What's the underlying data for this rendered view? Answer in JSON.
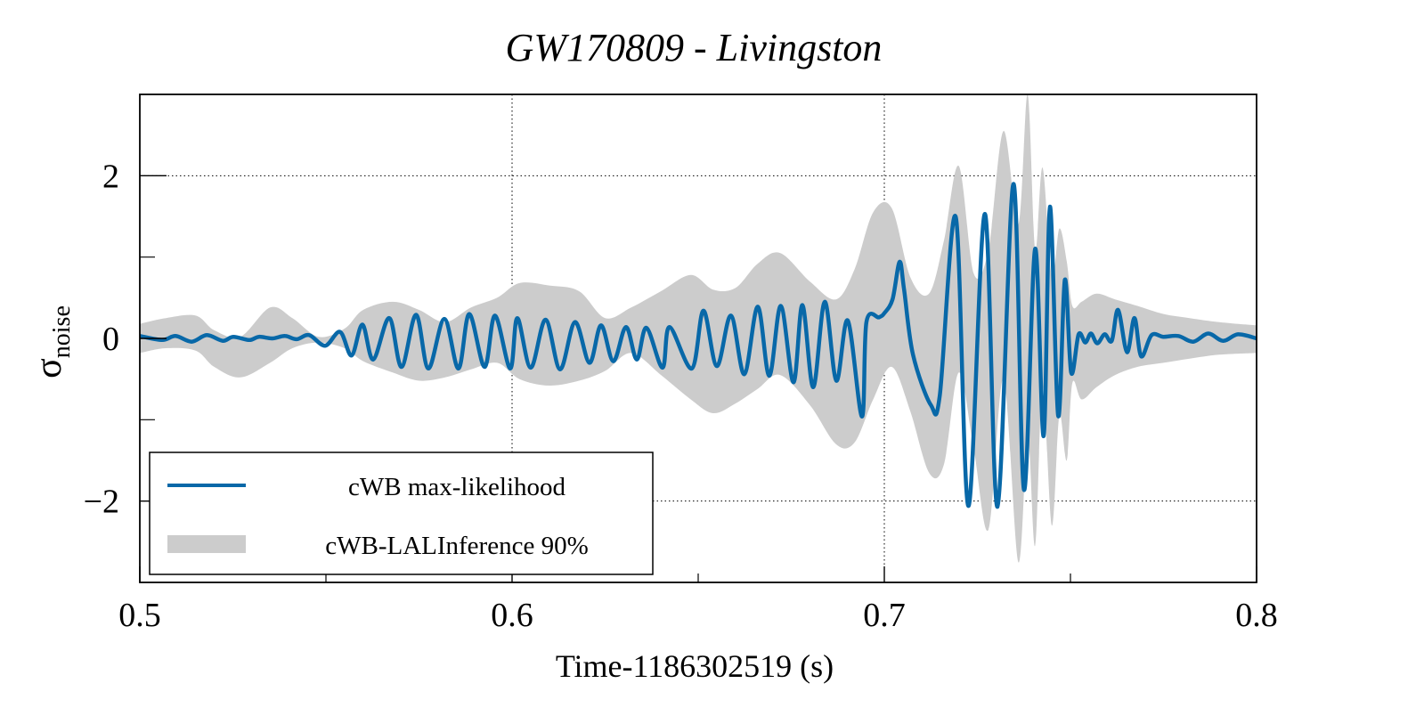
{
  "chart_data": {
    "type": "line",
    "title": "GW170809 - Livingston",
    "xlabel": "Time-1186302519 (s)",
    "ylabel": "σ",
    "ylabel_subscript": "noise",
    "xlim": [
      0.5,
      0.8
    ],
    "ylim": [
      -3.0,
      3.0
    ],
    "xticks": [
      0.5,
      0.6,
      0.7,
      0.8
    ],
    "xtick_labels": [
      "0.5",
      "0.6",
      "0.7",
      "0.8"
    ],
    "xminor_ticks": [
      0.55,
      0.65,
      0.75
    ],
    "yticks": [
      -2,
      0,
      2
    ],
    "ytick_labels": [
      "−2",
      "0",
      "2"
    ],
    "yminor_ticks": [
      -1,
      1
    ],
    "grid": true,
    "legend": {
      "position": "bottom-left",
      "entries": [
        {
          "label": "cWB max-likelihood",
          "kind": "line",
          "color": "#0868a8"
        },
        {
          "label": "cWB-LALInference 90%",
          "kind": "band",
          "color": "#cccccc"
        }
      ]
    },
    "series": [
      {
        "name": "cWB max-likelihood",
        "color": "#0868a8",
        "x": [
          0.5,
          0.506,
          0.5096,
          0.5139,
          0.518,
          0.5223,
          0.5251,
          0.5294,
          0.532,
          0.5356,
          0.539,
          0.5421,
          0.5455,
          0.5498,
          0.5538,
          0.5569,
          0.5598,
          0.5627,
          0.567,
          0.5703,
          0.5742,
          0.5775,
          0.5818,
          0.5856,
          0.5885,
          0.5926,
          0.5954,
          0.5995,
          0.6014,
          0.605,
          0.609,
          0.6129,
          0.6169,
          0.6208,
          0.6239,
          0.6272,
          0.6306,
          0.6335,
          0.6361,
          0.6404,
          0.6423,
          0.6483,
          0.6514,
          0.655,
          0.6588,
          0.6624,
          0.666,
          0.6691,
          0.6722,
          0.6756,
          0.678,
          0.6809,
          0.684,
          0.6871,
          0.6902,
          0.694,
          0.6952,
          0.6986,
          0.7,
          0.7022,
          0.7041,
          0.7053,
          0.7077,
          0.7125,
          0.7149,
          0.7192,
          0.7226,
          0.727,
          0.7304,
          0.7347,
          0.7375,
          0.7405,
          0.7428,
          0.7445,
          0.7467,
          0.7485,
          0.7502,
          0.7522,
          0.754,
          0.7555,
          0.7572,
          0.7592,
          0.7611,
          0.7628,
          0.7652,
          0.7672,
          0.769,
          0.7718,
          0.775,
          0.779,
          0.783,
          0.787,
          0.791,
          0.795,
          0.8
        ],
        "y": [
          0.03,
          -0.02,
          0.03,
          -0.04,
          0.04,
          -0.03,
          0.02,
          -0.02,
          0.02,
          0.0,
          0.03,
          -0.01,
          0.04,
          -0.09,
          0.08,
          -0.21,
          0.17,
          -0.26,
          0.25,
          -0.35,
          0.29,
          -0.37,
          0.24,
          -0.37,
          0.3,
          -0.35,
          0.28,
          -0.37,
          0.25,
          -0.36,
          0.23,
          -0.38,
          0.2,
          -0.3,
          0.16,
          -0.28,
          0.14,
          -0.26,
          0.13,
          -0.36,
          0.14,
          -0.37,
          0.34,
          -0.34,
          0.28,
          -0.44,
          0.39,
          -0.46,
          0.4,
          -0.54,
          0.41,
          -0.6,
          0.45,
          -0.52,
          0.22,
          -0.96,
          0.2,
          0.26,
          0.31,
          0.48,
          0.94,
          0.6,
          -0.2,
          -0.82,
          -0.7,
          1.49,
          -2.06,
          1.53,
          -2.07,
          1.9,
          -1.86,
          1.1,
          -1.2,
          1.62,
          -0.95,
          0.72,
          -0.42,
          0.05,
          -0.05,
          0.06,
          -0.06,
          0.05,
          -0.03,
          0.35,
          -0.17,
          0.25,
          -0.22,
          0.04,
          0.02,
          0.03,
          -0.04,
          0.06,
          -0.03,
          0.05,
          0.0
        ]
      },
      {
        "name": "cWB-LALInference 90%",
        "color": "#cccccc",
        "kind": "band",
        "x": [
          0.5,
          0.507,
          0.515,
          0.52,
          0.527,
          0.535,
          0.541,
          0.548,
          0.555,
          0.56,
          0.568,
          0.575,
          0.582,
          0.589,
          0.596,
          0.602,
          0.61,
          0.618,
          0.625,
          0.632,
          0.64,
          0.648,
          0.654,
          0.66,
          0.666,
          0.672,
          0.68,
          0.687,
          0.692,
          0.697,
          0.702,
          0.707,
          0.712,
          0.716,
          0.72,
          0.724,
          0.728,
          0.732,
          0.736,
          0.7385,
          0.7405,
          0.7425,
          0.745,
          0.747,
          0.749,
          0.7505,
          0.753,
          0.757,
          0.762,
          0.768,
          0.775,
          0.782,
          0.79,
          0.8
        ],
        "lower": [
          -0.18,
          -0.12,
          -0.15,
          -0.35,
          -0.48,
          -0.3,
          -0.12,
          -0.05,
          -0.12,
          -0.28,
          -0.42,
          -0.52,
          -0.48,
          -0.38,
          -0.3,
          -0.5,
          -0.58,
          -0.52,
          -0.4,
          -0.18,
          -0.45,
          -0.75,
          -0.92,
          -0.8,
          -0.62,
          -0.45,
          -0.82,
          -1.3,
          -1.28,
          -0.75,
          -0.35,
          -0.9,
          -1.65,
          -1.55,
          -0.42,
          -1.35,
          -2.35,
          -0.5,
          -2.75,
          -1.2,
          -2.55,
          -0.6,
          -2.3,
          -0.95,
          -1.5,
          -0.55,
          -0.75,
          -0.6,
          -0.45,
          -0.35,
          -0.3,
          -0.25,
          -0.2,
          -0.18
        ],
        "upper": [
          0.18,
          0.25,
          0.28,
          0.1,
          0.02,
          0.38,
          0.25,
          0.02,
          0.12,
          0.35,
          0.45,
          0.35,
          0.2,
          0.38,
          0.5,
          0.68,
          0.65,
          0.58,
          0.25,
          0.38,
          0.58,
          0.78,
          0.6,
          0.62,
          0.92,
          1.05,
          0.7,
          0.48,
          0.85,
          1.55,
          1.6,
          0.75,
          0.55,
          1.2,
          2.12,
          0.8,
          1.1,
          2.55,
          1.4,
          3.0,
          1.1,
          2.1,
          0.75,
          1.35,
          0.95,
          0.4,
          0.45,
          0.55,
          0.48,
          0.4,
          0.3,
          0.25,
          0.2,
          0.16
        ]
      }
    ]
  }
}
